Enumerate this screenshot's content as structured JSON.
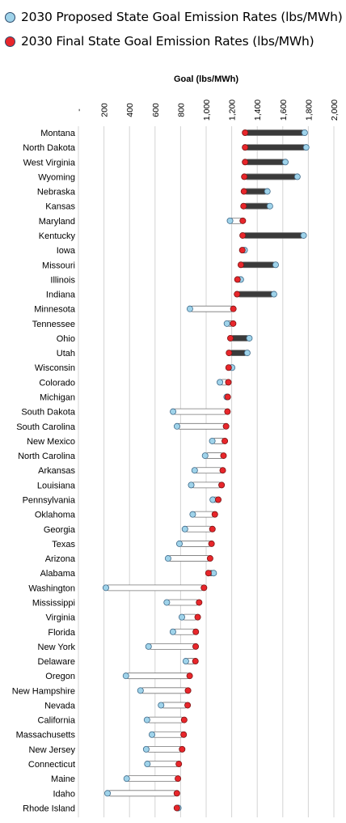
{
  "legend": {
    "proposed_label": "2030 Proposed State Goal Emission Rates (lbs/MWh)",
    "final_label": "2030 Final State Goal Emission Rates (lbs/MWh)"
  },
  "colors": {
    "proposed": "#9fd3ea",
    "final": "#e8262b",
    "increase_bar": "#ffffff",
    "decrease_bar": "#3a3a3a",
    "grid": "#d4d4d4"
  },
  "chart_data": {
    "type": "dumbbell",
    "xlabel": "Goal (lbs/MWh)",
    "xlim": [
      0,
      2000
    ],
    "xticks": [
      0,
      200,
      400,
      600,
      800,
      1000,
      1200,
      1400,
      1600,
      1800,
      2000
    ],
    "xtick_labels": [
      "-",
      "200",
      "400",
      "600",
      "800",
      "1,000",
      "1,200",
      "1,400",
      "1,600",
      "1,800",
      "2,000"
    ],
    "grid": true,
    "legend_position": "top",
    "series": [
      {
        "name": "2030 Proposed State Goal Emission Rates (lbs/MWh)",
        "key": "proposed"
      },
      {
        "name": "2030 Final State Goal Emission Rates (lbs/MWh)",
        "key": "final"
      }
    ],
    "states": [
      {
        "name": "Montana",
        "proposed": 1771,
        "final": 1305
      },
      {
        "name": "North Dakota",
        "proposed": 1783,
        "final": 1305
      },
      {
        "name": "West Virginia",
        "proposed": 1620,
        "final": 1305
      },
      {
        "name": "Wyoming",
        "proposed": 1714,
        "final": 1299
      },
      {
        "name": "Nebraska",
        "proposed": 1479,
        "final": 1296
      },
      {
        "name": "Kansas",
        "proposed": 1499,
        "final": 1293
      },
      {
        "name": "Maryland",
        "proposed": 1187,
        "final": 1287
      },
      {
        "name": "Kentucky",
        "proposed": 1763,
        "final": 1286
      },
      {
        "name": "Iowa",
        "proposed": 1301,
        "final": 1283
      },
      {
        "name": "Missouri",
        "proposed": 1544,
        "final": 1272
      },
      {
        "name": "Illinois",
        "proposed": 1271,
        "final": 1245
      },
      {
        "name": "Indiana",
        "proposed": 1531,
        "final": 1242
      },
      {
        "name": "Minnesota",
        "proposed": 873,
        "final": 1213
      },
      {
        "name": "Tennessee",
        "proposed": 1163,
        "final": 1211
      },
      {
        "name": "Ohio",
        "proposed": 1338,
        "final": 1190
      },
      {
        "name": "Utah",
        "proposed": 1322,
        "final": 1179
      },
      {
        "name": "Wisconsin",
        "proposed": 1203,
        "final": 1176
      },
      {
        "name": "Colorado",
        "proposed": 1108,
        "final": 1174
      },
      {
        "name": "Michigan",
        "proposed": 1161,
        "final": 1169
      },
      {
        "name": "South Dakota",
        "proposed": 741,
        "final": 1167
      },
      {
        "name": "South Carolina",
        "proposed": 772,
        "final": 1156
      },
      {
        "name": "New Mexico",
        "proposed": 1048,
        "final": 1146
      },
      {
        "name": "North Carolina",
        "proposed": 992,
        "final": 1136
      },
      {
        "name": "Arkansas",
        "proposed": 910,
        "final": 1130
      },
      {
        "name": "Louisiana",
        "proposed": 883,
        "final": 1121
      },
      {
        "name": "Pennsylvania",
        "proposed": 1052,
        "final": 1095
      },
      {
        "name": "Oklahoma",
        "proposed": 895,
        "final": 1068
      },
      {
        "name": "Georgia",
        "proposed": 834,
        "final": 1049
      },
      {
        "name": "Texas",
        "proposed": 791,
        "final": 1042
      },
      {
        "name": "Arizona",
        "proposed": 702,
        "final": 1031
      },
      {
        "name": "Alabama",
        "proposed": 1059,
        "final": 1018
      },
      {
        "name": "Washington",
        "proposed": 215,
        "final": 983
      },
      {
        "name": "Mississippi",
        "proposed": 692,
        "final": 945
      },
      {
        "name": "Virginia",
        "proposed": 810,
        "final": 934
      },
      {
        "name": "Florida",
        "proposed": 740,
        "final": 919
      },
      {
        "name": "New York",
        "proposed": 549,
        "final": 918
      },
      {
        "name": "Delaware",
        "proposed": 841,
        "final": 916
      },
      {
        "name": "Oregon",
        "proposed": 372,
        "final": 871
      },
      {
        "name": "New Hampshire",
        "proposed": 486,
        "final": 858
      },
      {
        "name": "Nevada",
        "proposed": 647,
        "final": 855
      },
      {
        "name": "California",
        "proposed": 537,
        "final": 828
      },
      {
        "name": "Massachusetts",
        "proposed": 576,
        "final": 824
      },
      {
        "name": "New Jersey",
        "proposed": 531,
        "final": 812
      },
      {
        "name": "Connecticut",
        "proposed": 540,
        "final": 786
      },
      {
        "name": "Maine",
        "proposed": 378,
        "final": 779
      },
      {
        "name": "Idaho",
        "proposed": 228,
        "final": 771
      },
      {
        "name": "Rhode Island",
        "proposed": 782,
        "final": 771
      }
    ]
  }
}
